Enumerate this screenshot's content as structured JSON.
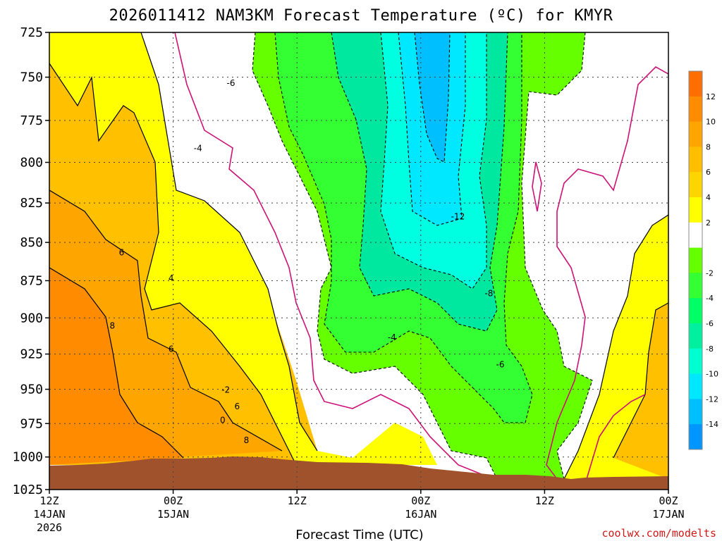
{
  "chart_data": {
    "type": "heatmap",
    "title": "2026011412 NAM3KM Forecast Temperature (ºC) for KMYR",
    "xlabel": "Forecast Time (UTC)",
    "ylabel": "",
    "credit": "coolwx.com/modelts",
    "x_ticks": [
      {
        "label": "12Z",
        "sub": "14JAN",
        "year": "2026",
        "hours": 0
      },
      {
        "label": "00Z",
        "sub": "15JAN",
        "year": "",
        "hours": 12
      },
      {
        "label": "12Z",
        "sub": "",
        "year": "",
        "hours": 24
      },
      {
        "label": "00Z",
        "sub": "16JAN",
        "year": "",
        "hours": 36
      },
      {
        "label": "12Z",
        "sub": "",
        "year": "",
        "hours": 48
      },
      {
        "label": "00Z",
        "sub": "17JAN",
        "year": "",
        "hours": 60
      }
    ],
    "x_range_hours": [
      0,
      60
    ],
    "y_ticks": [
      "725",
      "750",
      "775",
      "800",
      "825",
      "850",
      "875",
      "900",
      "925",
      "950",
      "975",
      "1000",
      "1025"
    ],
    "y_range_hpa": [
      725,
      1025
    ],
    "y_scale": "log-pressure",
    "grid": true,
    "colorbar": {
      "labels": [
        "12",
        "10",
        "8",
        "6",
        "4",
        "2",
        "-2",
        "-4",
        "-6",
        "-8",
        "-10",
        "-12",
        "-14"
      ],
      "colors": [
        "#ff6e00",
        "#ff8c00",
        "#ffa500",
        "#ffbe00",
        "#ffd500",
        "#ffff00",
        "#ffffff",
        "#66ff00",
        "#33ff33",
        "#00ff66",
        "#00f0a0",
        "#00ffd0",
        "#00e8ff",
        "#00bfff",
        "#0096ff"
      ]
    },
    "contour_labels": [
      {
        "text": "-6",
        "hours": 17.6,
        "hpa": 753
      },
      {
        "text": "-4",
        "hours": 14.4,
        "hpa": 791
      },
      {
        "text": "-12",
        "hours": 39.6,
        "hpa": 833
      },
      {
        "text": "-8",
        "hours": 42.6,
        "hpa": 883
      },
      {
        "text": "-4",
        "hours": 33.2,
        "hpa": 913
      },
      {
        "text": "-6",
        "hours": 43.7,
        "hpa": 932
      },
      {
        "text": "-2",
        "hours": 17.1,
        "hpa": 950
      },
      {
        "text": "0",
        "hours": 16.8,
        "hpa": 972
      },
      {
        "text": "6",
        "hours": 7.0,
        "hpa": 856
      },
      {
        "text": "4",
        "hours": 11.8,
        "hpa": 873
      },
      {
        "text": "8",
        "hours": 6.1,
        "hpa": 905
      },
      {
        "text": "6",
        "hours": 11.8,
        "hpa": 921
      },
      {
        "text": "6",
        "hours": 18.2,
        "hpa": 962
      },
      {
        "text": "8",
        "hours": 19.1,
        "hpa": 987
      }
    ]
  },
  "palette": {
    "ground": "#a0522d",
    "orange": "#ff8c00",
    "orange2": "#ffa500",
    "amber": "#ffc000",
    "yellow": "#ffff00",
    "green": "#66ff00",
    "green2": "#33ff33",
    "teal": "#00e8a0",
    "aqua": "#00ffe0",
    "cyan": "#00e8ff",
    "blue": "#00bfff",
    "zero_line": "#cc1177"
  }
}
